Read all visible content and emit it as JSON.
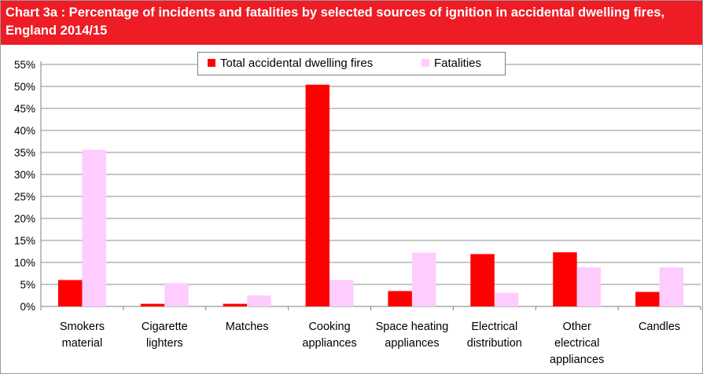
{
  "title": "Chart 3a : Percentage of incidents and fatalities by selected sources of ignition in accidental dwelling fires, England 2014/15",
  "chart_data": {
    "type": "bar",
    "title": "Chart 3a : Percentage of incidents and fatalities by selected sources of ignition in accidental dwelling fires, England 2014/15",
    "categories": [
      [
        "Smokers",
        "material"
      ],
      [
        "Cigarette",
        "lighters"
      ],
      [
        "Matches"
      ],
      [
        "Cooking",
        "appliances"
      ],
      [
        "Space heating",
        "appliances"
      ],
      [
        "Electrical",
        "distribution"
      ],
      [
        "Other",
        "electrical",
        "appliances"
      ],
      [
        "Candles"
      ]
    ],
    "series": [
      {
        "name": "Total accidental dwelling fires",
        "color": "#ff0000",
        "values": [
          6.0,
          0.6,
          0.6,
          50.4,
          3.5,
          11.9,
          12.3,
          3.3
        ]
      },
      {
        "name": "Fatalities",
        "color": "#ffccff",
        "values": [
          35.6,
          5.3,
          2.5,
          6.0,
          12.2,
          3.1,
          8.9,
          8.9
        ]
      }
    ],
    "yticks": [
      "0%",
      "5%",
      "10%",
      "15%",
      "20%",
      "25%",
      "30%",
      "35%",
      "40%",
      "45%",
      "50%",
      "55%"
    ],
    "ylim": [
      0,
      55
    ],
    "grid": true,
    "legend_position": "top-center"
  }
}
